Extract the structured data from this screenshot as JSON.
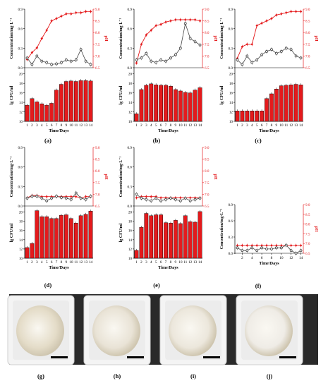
{
  "axis_text": {
    "conc_label": "Concentration/mg·L⁻¹",
    "cfu_label": "lg CFU/ml",
    "ph_label": "pH",
    "x_label": "Time/Days"
  },
  "colors": {
    "ph": "#e41a1c",
    "bar": "#e41a1c",
    "conc": "#444444",
    "axis": "#000000"
  },
  "photos": [
    {
      "label": "(g)",
      "powder": "#e4dcc8"
    },
    {
      "label": "(h)",
      "powder": "#e9e3d6"
    },
    {
      "label": "(i)",
      "powder": "#ece7dc"
    },
    {
      "label": "(j)",
      "powder": "#efece6"
    }
  ],
  "chart_data": [
    {
      "label": "(a)",
      "type": "bar+line",
      "x": [
        1,
        2,
        3,
        4,
        5,
        6,
        7,
        8,
        9,
        10,
        11,
        12,
        13,
        14
      ],
      "x_ticks": [
        "1",
        "2",
        "3",
        "4",
        "5",
        "6",
        "7",
        "8",
        "9",
        "10",
        "11",
        "12",
        "13",
        "14"
      ],
      "conc_ticks": [
        "0.0",
        "0.3",
        "0.6",
        "0.9"
      ],
      "conc_ylim": [
        0,
        0.9
      ],
      "ph_ticks": [
        "6.5",
        "7.0",
        "7.5",
        "8.0",
        "8.5",
        "9.0"
      ],
      "ph_ylim": [
        6.5,
        9.0
      ],
      "cfu_ticks": [
        "10",
        "12",
        "14",
        "16",
        "18",
        "20"
      ],
      "cfu_ylim": [
        10,
        21
      ],
      "ph": [
        6.85,
        7.15,
        7.35,
        7.75,
        8.1,
        8.5,
        8.6,
        8.7,
        8.8,
        8.8,
        8.85,
        8.85,
        8.9,
        8.9
      ],
      "conc": [
        0.15,
        0.05,
        0.18,
        0.1,
        0.08,
        0.05,
        0.06,
        0.08,
        0.12,
        0.1,
        0.12,
        0.28,
        0.1,
        0.05
      ],
      "cfu": [
        13.4,
        14.8,
        14.1,
        13.7,
        13.4,
        13.8,
        16.6,
        17.8,
        18.4,
        18.5,
        18.4,
        18.6,
        18.6,
        18.5
      ]
    },
    {
      "label": "(b)",
      "type": "bar+line",
      "x": [
        1,
        2,
        3,
        4,
        5,
        6,
        7,
        8,
        9,
        10,
        11,
        12,
        13,
        14
      ],
      "x_ticks": [
        "1",
        "2",
        "3",
        "4",
        "5",
        "6",
        "7",
        "8",
        "9",
        "10",
        "11",
        "12",
        "13",
        "14"
      ],
      "conc_ticks": [
        "0.0",
        "0.3",
        "0.6",
        "0.9"
      ],
      "conc_ylim": [
        0,
        0.9
      ],
      "ph_ticks": [
        "6.5",
        "7.0",
        "7.5",
        "8.0",
        "8.5",
        "9.0"
      ],
      "ph_ylim": [
        6.5,
        9.0
      ],
      "cfu_ticks": [
        "10",
        "12",
        "14",
        "16",
        "18",
        "20"
      ],
      "cfu_ylim": [
        10,
        21
      ],
      "ph": [
        6.7,
        7.5,
        7.9,
        8.1,
        8.3,
        8.35,
        8.45,
        8.5,
        8.55,
        8.55,
        8.55,
        8.55,
        8.55,
        8.5
      ],
      "conc": [
        0.12,
        0.15,
        0.22,
        0.1,
        0.08,
        0.12,
        0.1,
        0.15,
        0.2,
        0.3,
        0.68,
        0.45,
        0.4,
        0.35
      ],
      "cfu": [
        11.6,
        16.7,
        17.6,
        17.9,
        17.7,
        17.6,
        17.6,
        17.4,
        16.7,
        16.4,
        16.1,
        16.0,
        16.6,
        17.1
      ]
    },
    {
      "label": "(c)",
      "type": "bar+line",
      "x": [
        1,
        2,
        3,
        4,
        5,
        6,
        7,
        8,
        9,
        10,
        11,
        12,
        13,
        14
      ],
      "x_ticks": [
        "1",
        "2",
        "3",
        "4",
        "5",
        "6",
        "7",
        "8",
        "9",
        "10",
        "11",
        "12",
        "13",
        "14"
      ],
      "conc_ticks": [
        "0.0",
        "0.3",
        "0.6",
        "0.9"
      ],
      "conc_ylim": [
        0,
        0.9
      ],
      "ph_ticks": [
        "6.5",
        "7.0",
        "7.5",
        "8.0",
        "8.5",
        "9.0"
      ],
      "ph_ylim": [
        6.5,
        9.0
      ],
      "cfu_ticks": [
        "10",
        "12",
        "14",
        "16",
        "18",
        "20"
      ],
      "cfu_ylim": [
        10,
        21
      ],
      "ph": [
        6.9,
        7.4,
        7.5,
        7.5,
        8.3,
        8.4,
        8.5,
        8.6,
        8.75,
        8.8,
        8.85,
        8.9,
        8.9,
        8.9
      ],
      "conc": [
        0.12,
        0.05,
        0.18,
        0.08,
        0.12,
        0.2,
        0.25,
        0.28,
        0.22,
        0.25,
        0.3,
        0.28,
        0.18,
        0.15
      ],
      "cfu": [
        12.2,
        12.2,
        12.2,
        12.2,
        12.2,
        12.2,
        14.8,
        15.8,
        16.8,
        17.5,
        17.6,
        17.7,
        17.8,
        17.7
      ]
    },
    {
      "label": "(d)",
      "type": "bar+line",
      "x": [
        1,
        2,
        3,
        4,
        5,
        6,
        7,
        8,
        9,
        10,
        11,
        12,
        13,
        14
      ],
      "x_ticks": [
        "1",
        "2",
        "3",
        "4",
        "5",
        "6",
        "7",
        "8",
        "9",
        "10",
        "11",
        "12",
        "13",
        "14"
      ],
      "conc_ticks": [
        "0.0",
        "0.3",
        "0.6",
        "0.9"
      ],
      "conc_ylim": [
        0,
        0.9
      ],
      "ph_ticks": [
        "6.5",
        "7.0",
        "7.5",
        "8.0",
        "8.5",
        "9.0"
      ],
      "ph_ylim": [
        6.5,
        9.0
      ],
      "cfu_ticks": [
        "10",
        "12",
        "14",
        "16",
        "18",
        "20"
      ],
      "cfu_ylim": [
        10,
        21
      ],
      "ph": [
        6.85,
        6.95,
        6.95,
        6.9,
        6.9,
        6.9,
        6.9,
        6.9,
        6.9,
        6.9,
        6.9,
        6.85,
        6.9,
        6.9
      ],
      "conc": [
        0.12,
        0.15,
        0.15,
        0.12,
        0.08,
        0.12,
        0.15,
        0.13,
        0.12,
        0.1,
        0.2,
        0.12,
        0.1,
        0.15
      ],
      "cfu": [
        12.3,
        13.2,
        20.3,
        19.0,
        19.0,
        18.6,
        18.6,
        19.3,
        19.4,
        18.6,
        17.6,
        19.2,
        19.5,
        20.2
      ]
    },
    {
      "label": "(e)",
      "type": "bar+line",
      "x": [
        1,
        2,
        3,
        4,
        5,
        6,
        7,
        8,
        9,
        10,
        11,
        12,
        13,
        14
      ],
      "x_ticks": [
        "1",
        "2",
        "3",
        "4",
        "5",
        "6",
        "7",
        "8",
        "9",
        "10",
        "11",
        "12",
        "13",
        "14"
      ],
      "conc_ticks": [
        "0.0",
        "0.3",
        "0.6",
        "0.9"
      ],
      "conc_ylim": [
        0,
        0.9
      ],
      "ph_ticks": [
        "6.5",
        "7.0",
        "7.5",
        "8.0",
        "8.5",
        "9.0"
      ],
      "ph_ylim": [
        6.5,
        9.0
      ],
      "cfu_ticks": [
        "10",
        "12",
        "14",
        "16",
        "18",
        "20"
      ],
      "cfu_ylim": [
        10,
        21
      ],
      "ph": [
        6.85,
        6.9,
        6.9,
        6.9,
        6.9,
        6.85,
        6.85,
        6.85,
        6.85,
        6.85,
        6.85,
        6.85,
        6.85,
        6.85
      ],
      "conc": [
        0.18,
        0.12,
        0.1,
        0.08,
        0.12,
        0.08,
        0.1,
        0.12,
        0.1,
        0.08,
        0.12,
        0.08,
        0.1,
        0.12
      ],
      "cfu": [
        11.7,
        16.7,
        19.7,
        19.2,
        19.4,
        19.4,
        17.7,
        17.6,
        18.2,
        17.5,
        19.2,
        17.9,
        17.8,
        20.1
      ]
    },
    {
      "label": "(f)",
      "type": "line",
      "x": [
        1,
        2,
        3,
        4,
        5,
        6,
        7,
        8,
        9,
        10,
        11,
        12,
        13,
        14
      ],
      "x_ticks": [
        "2",
        "4",
        "6",
        "8",
        "10",
        "12",
        "14"
      ],
      "conc_ticks": [
        "0.0",
        "0.3",
        "0.6",
        "0.9"
      ],
      "conc_ylim": [
        0,
        0.9
      ],
      "ph_ticks": [
        "6.5",
        "7.0",
        "7.5",
        "8.0",
        "8.5",
        "9.0"
      ],
      "ph_ylim": [
        6.5,
        9.0
      ],
      "ph": [
        6.9,
        6.9,
        6.9,
        6.9,
        6.9,
        6.9,
        6.9,
        6.9,
        6.9,
        6.9,
        6.9,
        6.9,
        6.9,
        6.9
      ],
      "conc": [
        0.1,
        0.05,
        0.05,
        0.1,
        0.05,
        0.1,
        0.08,
        0.08,
        0.1,
        0.1,
        0.15,
        0.05,
        0.0,
        0.05
      ]
    }
  ]
}
